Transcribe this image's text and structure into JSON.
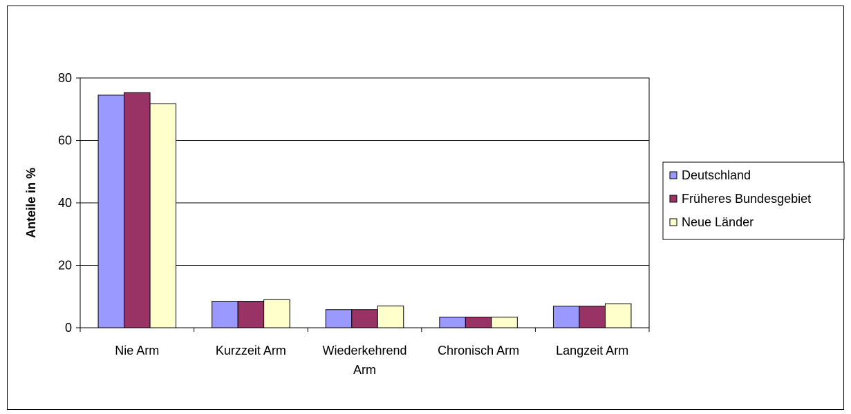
{
  "chart_data": {
    "type": "bar",
    "categories": [
      [
        "Nie Arm"
      ],
      [
        "Kurzzeit Arm"
      ],
      [
        "Wiederkehrend",
        "Arm"
      ],
      [
        "Chronisch Arm"
      ],
      [
        "Langzeit Arm"
      ]
    ],
    "series": [
      {
        "name": "Deutschland",
        "color": "#9999ff",
        "values": [
          74.5,
          8.5,
          5.8,
          3.4,
          6.9
        ]
      },
      {
        "name": "Früheres Bundesgebiet",
        "color": "#993366",
        "values": [
          75.3,
          8.5,
          5.8,
          3.4,
          6.9
        ]
      },
      {
        "name": "Neue Länder",
        "color": "#ffffcc",
        "values": [
          71.7,
          9.0,
          7.0,
          3.4,
          7.7
        ]
      }
    ],
    "ylabel": "Anteile in %",
    "xlabel": "",
    "ylim": [
      0,
      80
    ],
    "yticks": [
      0,
      20,
      40,
      60,
      80
    ],
    "grid": true,
    "legend": "right"
  }
}
